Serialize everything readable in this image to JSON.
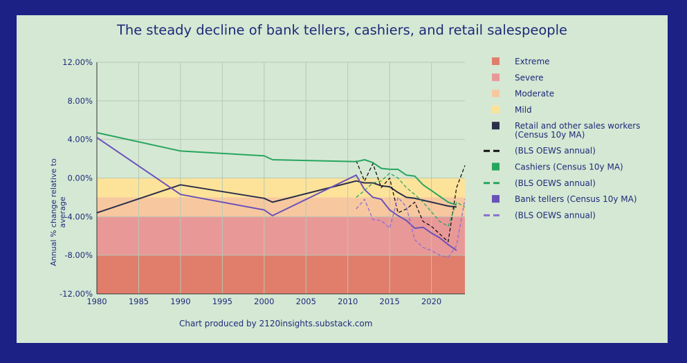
{
  "chart_data": {
    "type": "line",
    "title": "The steady decline of bank tellers, cashiers, and retail salespeople",
    "ylabel": "Annual % change relative to average",
    "xlabel": "",
    "credit": "Chart produced by 2120insights.substack.com",
    "xlim": [
      1980,
      2024
    ],
    "ylim": [
      -12,
      12
    ],
    "x_ticks": [
      "1980",
      "1985",
      "1990",
      "1995",
      "2000",
      "2005",
      "2010",
      "2015",
      "2020"
    ],
    "x_tick_values": [
      1980,
      1985,
      1990,
      1995,
      2000,
      2005,
      2010,
      2015,
      2020
    ],
    "y_ticks": [
      "12.00%",
      "8.00%",
      "4.00%",
      "0.00%",
      "-4.00%",
      "-8.00%",
      "-12.00%"
    ],
    "y_tick_values": [
      12,
      8,
      4,
      0,
      -4,
      -8,
      -12
    ],
    "bands": [
      {
        "name": "Extreme",
        "from": -12,
        "to": -8,
        "color": "#e07e6b"
      },
      {
        "name": "Severe",
        "from": -8,
        "to": -4,
        "color": "#e99898"
      },
      {
        "name": "Moderate",
        "from": -4,
        "to": -2,
        "color": "#f7c8a0"
      },
      {
        "name": "Mild",
        "from": -2,
        "to": 0,
        "color": "#fde39a"
      }
    ],
    "series": [
      {
        "name": "Retail and other sales workers (Census 10y MA)",
        "color": "#2a2e4a",
        "dashed": false,
        "x": [
          1980,
          1990,
          2000,
          2001,
          2011,
          2012,
          2013,
          2014,
          2015,
          2016,
          2017,
          2018,
          2019,
          2020,
          2021,
          2022,
          2023
        ],
        "y": [
          -3.6,
          -0.7,
          -2.1,
          -2.5,
          -0.3,
          -0.5,
          -0.5,
          -0.8,
          -0.9,
          -1.5,
          -2.0,
          -2.1,
          -2.3,
          -2.5,
          -2.7,
          -2.9,
          -3.0
        ]
      },
      {
        "name": "(BLS OEWS annual)",
        "color": "#111111",
        "dashed": true,
        "x": [
          2011,
          2012,
          2013,
          2014,
          2015,
          2016,
          2017,
          2018,
          2019,
          2020,
          2021,
          2022,
          2023,
          2024
        ],
        "y": [
          1.8,
          -0.3,
          1.5,
          -1.0,
          0.0,
          -3.6,
          -3.2,
          -2.5,
          -4.5,
          -5.0,
          -5.8,
          -6.6,
          -1.0,
          1.3
        ]
      },
      {
        "name": "Cashiers (Census 10y MA)",
        "color": "#27a55f",
        "dashed": false,
        "x": [
          1980,
          1990,
          2000,
          2001,
          2011,
          2012,
          2013,
          2014,
          2015,
          2016,
          2017,
          2018,
          2019,
          2020,
          2021,
          2022,
          2023
        ],
        "y": [
          4.7,
          2.8,
          2.3,
          1.9,
          1.7,
          1.9,
          1.6,
          1.0,
          0.9,
          0.9,
          0.3,
          0.2,
          -0.7,
          -1.3,
          -1.9,
          -2.5,
          -2.8
        ]
      },
      {
        "name": "(BLS OEWS annual)",
        "color": "#27a55f",
        "dashed": true,
        "x": [
          2011,
          2012,
          2013,
          2014,
          2015,
          2016,
          2017,
          2018,
          2019,
          2020,
          2021,
          2022,
          2023,
          2024
        ],
        "y": [
          -2.0,
          -1.3,
          -0.5,
          -0.3,
          0.5,
          0.0,
          -1.0,
          -1.7,
          -2.5,
          -3.5,
          -4.5,
          -5.0,
          -2.5,
          -3.0
        ]
      },
      {
        "name": "Bank tellers (Census 10y MA)",
        "color": "#6a52b8",
        "dashed": false,
        "x": [
          1980,
          1990,
          2000,
          2001,
          2011,
          2012,
          2013,
          2014,
          2015,
          2016,
          2017,
          2018,
          2019,
          2020,
          2021,
          2022,
          2023
        ],
        "y": [
          4.2,
          -1.7,
          -3.3,
          -3.9,
          0.3,
          -1.2,
          -2.0,
          -2.2,
          -3.3,
          -3.9,
          -4.4,
          -5.2,
          -5.1,
          -5.7,
          -6.2,
          -6.9,
          -7.5
        ]
      },
      {
        "name": "(BLS OEWS annual)",
        "color": "#8a6fce",
        "dashed": true,
        "x": [
          2011,
          2012,
          2013,
          2014,
          2015,
          2016,
          2017,
          2018,
          2019,
          2020,
          2021,
          2022,
          2023,
          2024
        ],
        "y": [
          -3.2,
          -2.2,
          -4.3,
          -4.4,
          -5.2,
          -2.0,
          -3.0,
          -6.4,
          -7.2,
          -7.5,
          -8.0,
          -8.2,
          -7.0,
          -2.2
        ]
      }
    ],
    "legend": [
      {
        "label": "Extreme",
        "kind": "box",
        "color": "#e07e6b"
      },
      {
        "label": "Severe",
        "kind": "box",
        "color": "#e99898"
      },
      {
        "label": "Moderate",
        "kind": "box",
        "color": "#f7c8a0"
      },
      {
        "label": "Mild",
        "kind": "box",
        "color": "#fde39a"
      },
      {
        "label": "Retail and other sales workers",
        "label2": "(Census 10y MA)",
        "kind": "box",
        "color": "#2a2e4a"
      },
      {
        "label": "(BLS OEWS annual)",
        "kind": "dash",
        "color": "#111111"
      },
      {
        "label": "Cashiers (Census 10y MA)",
        "kind": "box",
        "color": "#27a55f"
      },
      {
        "label": "(BLS OEWS annual)",
        "kind": "dash",
        "color": "#27a55f"
      },
      {
        "label": "Bank tellers (Census 10y MA)",
        "kind": "box",
        "color": "#6a52b8"
      },
      {
        "label": "(BLS OEWS annual)",
        "kind": "dash",
        "color": "#8a6fce"
      }
    ]
  }
}
